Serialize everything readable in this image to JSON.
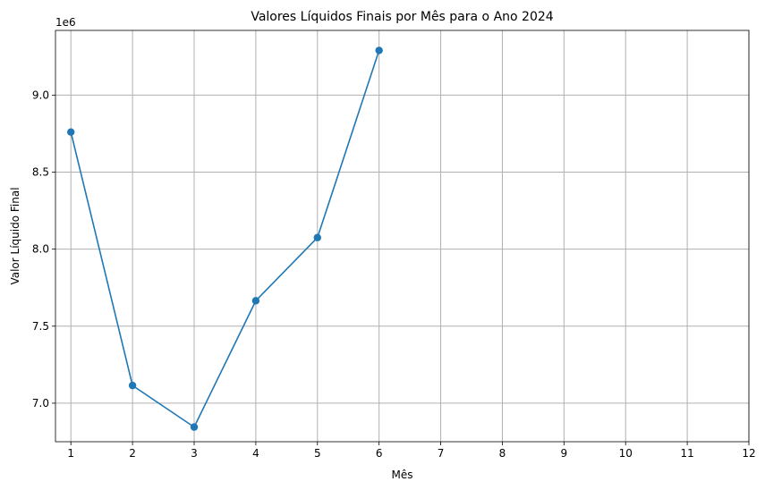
{
  "chart_data": {
    "type": "line",
    "title": "Valores Líquidos Finais por Mês para o Ano 2024",
    "xlabel": "Mês",
    "ylabel": "Valor Líquido Final",
    "y_offset_label": "1e6",
    "x": [
      1,
      2,
      3,
      4,
      5,
      6
    ],
    "series": [
      {
        "values": [
          8760000,
          7115000,
          6845000,
          7665000,
          8075000,
          9290000
        ],
        "color": "#1f77b4"
      }
    ],
    "xlim": [
      0.75,
      12.0
    ],
    "ylim": [
      6.75,
      9.42
    ],
    "x_ticks": [
      1,
      2,
      3,
      4,
      5,
      6,
      7,
      8,
      9,
      10,
      11,
      12
    ],
    "y_ticks": [
      7.0,
      7.5,
      8.0,
      8.5,
      9.0
    ],
    "y_tick_labels": [
      "7.0",
      "7.5",
      "8.0",
      "8.5",
      "9.0"
    ],
    "grid": true,
    "marker": "circle"
  }
}
